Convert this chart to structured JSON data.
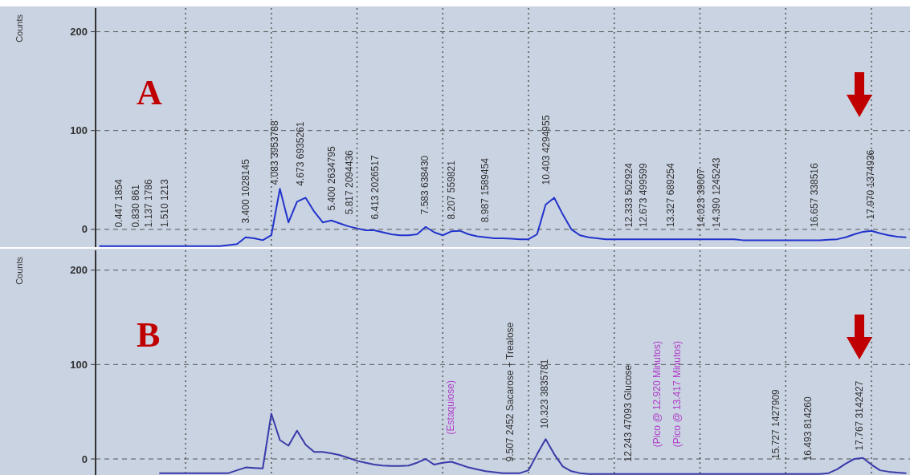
{
  "chart_data": [
    {
      "type": "line",
      "title": "A",
      "ylabel": "Counts",
      "categories": [
        null,
        null,
        null,
        null,
        null,
        null,
        null,
        null,
        null,
        null,
        null,
        null,
        null,
        null,
        null,
        null,
        null,
        null,
        null,
        null,
        null,
        null,
        null,
        null,
        null,
        null,
        null,
        null,
        null,
        null,
        null,
        null,
        null,
        null,
        null,
        null,
        null,
        null,
        null,
        null,
        null,
        null,
        null,
        null,
        null,
        null,
        null,
        null,
        null,
        null,
        null,
        null,
        null,
        null,
        null,
        null,
        null,
        null,
        null,
        null,
        null,
        null,
        null,
        null,
        null,
        null,
        null,
        null,
        null,
        null,
        null,
        null,
        null,
        null,
        null,
        null,
        null,
        null,
        null,
        null,
        null,
        null,
        null,
        null,
        null,
        null,
        null,
        null,
        null,
        null,
        null,
        null,
        null,
        null,
        null
      ],
      "ylim": [
        -18,
        224
      ],
      "yticks": [
        0,
        100,
        200
      ],
      "grid": true,
      "line_style": "solid",
      "series": [
        {
          "color": "#2233cc",
          "values": [
            -17,
            -17,
            -17,
            -17,
            -17,
            -17,
            -17,
            -17,
            -17,
            -17,
            -17,
            -17,
            -17,
            -17,
            -17,
            -16,
            -15,
            -8,
            -9,
            -11,
            -6,
            41,
            7,
            28,
            32,
            18,
            7,
            9,
            6,
            3,
            1,
            -1,
            -1,
            -3,
            -5,
            -6,
            -6,
            -5,
            2.5,
            -3,
            -6,
            -2,
            -1.5,
            -5,
            -7,
            -8,
            -9,
            -9,
            -9.5,
            -10,
            -10,
            -5,
            25,
            32,
            15,
            0,
            -6,
            -8,
            -9,
            -10,
            -10,
            -10,
            -10,
            -10,
            -10,
            -10,
            -10,
            -10,
            -10,
            -10,
            -10,
            -10,
            -10,
            -10,
            -10,
            -11,
            -11,
            -11,
            -11,
            -11,
            -11,
            -11,
            -11,
            -11,
            -11,
            -10.5,
            -10,
            -8,
            -5,
            -2.5,
            -1.5,
            -4,
            -6,
            -7.5,
            -8
          ]
        }
      ],
      "annotations": [
        "0.447 1854",
        "0.830 861",
        "1.137 1786",
        "1.510 1213",
        "3.400 1028145",
        "4.083 3953788",
        "4.673 6935261",
        "5.400 2634795",
        "5.817 2094436",
        "6.413 2026517",
        "7.583 638430",
        "8.207 559821",
        "8.987 1589454",
        "10.403 4294955",
        "12.333 502924",
        "12.673 499599",
        "13.327 689254",
        "14.023 39007",
        "14.390 1245243",
        "16.657 338516",
        "17.970 1374936"
      ]
    },
    {
      "type": "line",
      "title": "B",
      "ylabel": "Counts",
      "categories": [
        null,
        null,
        null,
        null,
        null,
        null,
        null,
        null,
        null,
        null,
        null,
        null,
        null,
        null,
        null,
        null,
        null,
        null,
        null,
        null,
        null,
        null,
        null,
        null,
        null,
        null,
        null,
        null,
        null,
        null,
        null,
        null,
        null,
        null,
        null,
        null,
        null,
        null,
        null,
        null,
        null,
        null,
        null,
        null,
        null,
        null,
        null,
        null,
        null,
        null,
        null,
        null,
        null,
        null,
        null,
        null,
        null,
        null,
        null,
        null,
        null,
        null,
        null,
        null,
        null,
        null,
        null,
        null,
        null,
        null,
        null,
        null,
        null,
        null,
        null,
        null,
        null,
        null,
        null,
        null,
        null,
        null,
        null,
        null,
        null,
        null,
        null,
        null,
        null,
        null,
        null,
        null,
        null,
        null,
        null
      ],
      "ylim": [
        -17,
        221
      ],
      "yticks": [
        0,
        100,
        200
      ],
      "grid": true,
      "line_style": "solid",
      "series": [
        {
          "color": "#3a3aa8",
          "values": [
            null,
            null,
            null,
            null,
            null,
            null,
            null,
            -15,
            -15,
            -15,
            -15,
            -15,
            -15,
            -15,
            -15,
            -15,
            -12,
            -9,
            -9.5,
            -10,
            48,
            20,
            14,
            30,
            15,
            7.5,
            7.5,
            6,
            4,
            1,
            -2,
            -4,
            -6,
            -7,
            -7.5,
            -7.5,
            -7,
            -4,
            0,
            -6,
            -4,
            -3,
            -6,
            -9,
            -11,
            -13,
            -14,
            -15,
            -15,
            -15,
            -12,
            5,
            21,
            5,
            -8,
            -13,
            -15,
            -16,
            -16,
            -16,
            -16,
            -16,
            -16,
            -16,
            -16,
            -16,
            -16,
            -16,
            -16,
            -16,
            -16,
            -16,
            -16,
            -16,
            -16,
            -16,
            -16,
            -16,
            -16,
            -16,
            -16,
            -16,
            -16,
            -16,
            -16,
            -15,
            -11,
            -5,
            0,
            1,
            -6,
            -12,
            -13.5,
            -14.5,
            -15
          ]
        }
      ],
      "annotations": [
        "(Estaquiose)",
        "9.507 2452 Sacarose + Trealose",
        "10.323 3835781",
        "12.243 47093 Glucose",
        "(Pico @ 12.920 Minutos)",
        "(Pico @ 13.417 Minutos)",
        "15.727 1427909",
        "16.493 814260",
        "17.767 3142427"
      ]
    }
  ]
}
